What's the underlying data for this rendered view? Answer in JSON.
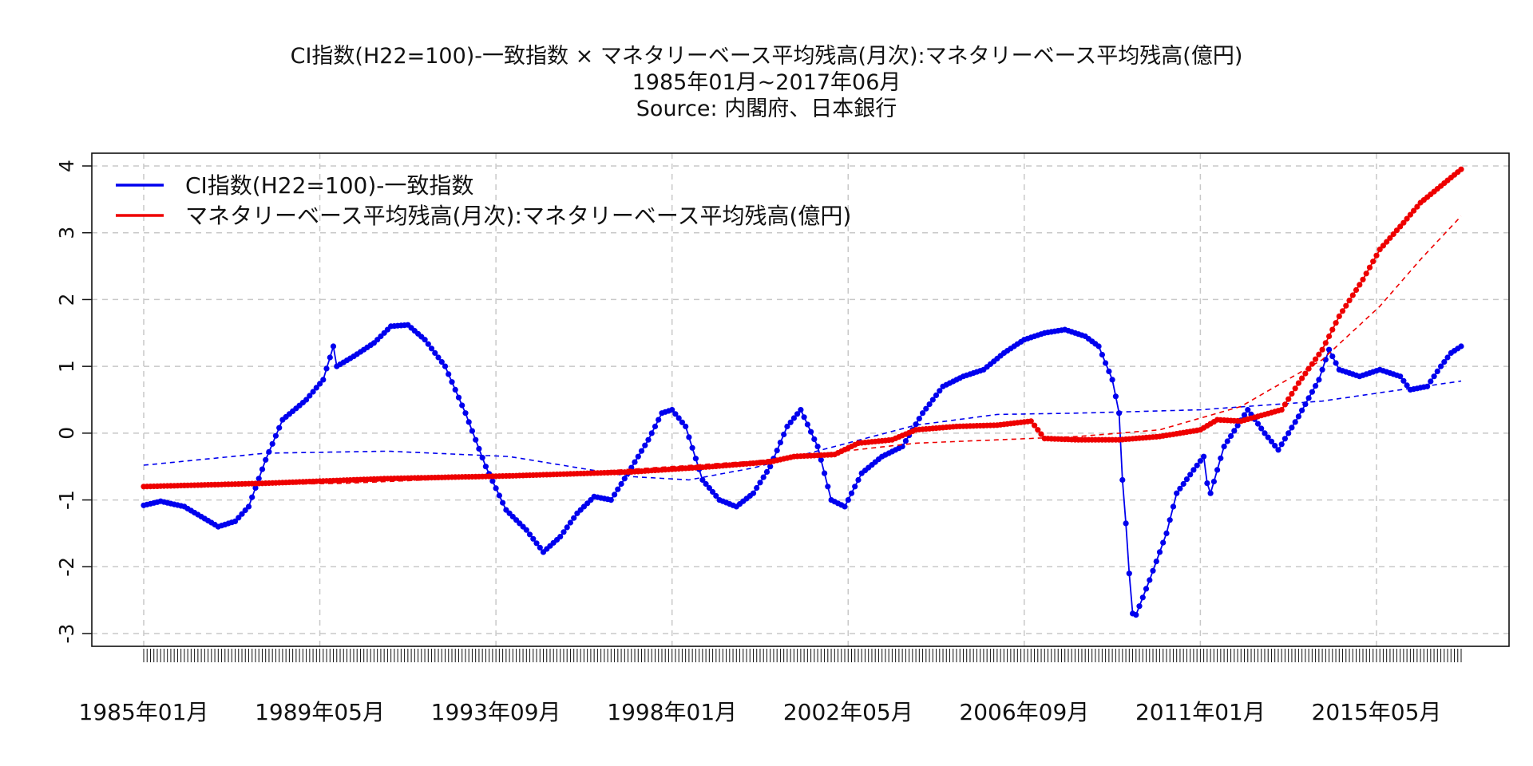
{
  "title": "CI指数(H22=100)-一致指数 × マネタリーベース平均残高(月次):マネタリーベース平均残高(億円)",
  "subtitle": "1985年01月~2017年06月",
  "source": "Source: 内閣府、日本銀行",
  "chart_data": {
    "type": "line",
    "x_start": "1985-01",
    "x_end": "2017-06",
    "x_ticks": [
      "1985年01月",
      "1989年05月",
      "1993年09月",
      "1998年01月",
      "2002年05月",
      "2006年09月",
      "2011年01月",
      "2015年05月"
    ],
    "y_ticks": [
      "-3",
      "-2",
      "-1",
      "0",
      "1",
      "2",
      "3",
      "4"
    ],
    "ylim": [
      -3,
      4
    ],
    "grid": true,
    "legend_position": "top-left",
    "series": [
      {
        "name": "CI指数(H22=100)-一致指数",
        "color": "#0000ee",
        "anchors": [
          [
            "1985-01",
            -1.08
          ],
          [
            "1985-06",
            -1.02
          ],
          [
            "1986-01",
            -1.1
          ],
          [
            "1986-06",
            -1.25
          ],
          [
            "1986-11",
            -1.4
          ],
          [
            "1987-04",
            -1.32
          ],
          [
            "1987-08",
            -1.1
          ],
          [
            "1988-01",
            -0.4
          ],
          [
            "1988-06",
            0.2
          ],
          [
            "1989-01",
            0.5
          ],
          [
            "1989-06",
            0.8
          ],
          [
            "1989-09",
            1.3
          ],
          [
            "1989-10",
            1.0
          ],
          [
            "1990-03",
            1.15
          ],
          [
            "1990-09",
            1.35
          ],
          [
            "1991-02",
            1.6
          ],
          [
            "1991-07",
            1.62
          ],
          [
            "1991-12",
            1.4
          ],
          [
            "1992-06",
            1.0
          ],
          [
            "1992-12",
            0.3
          ],
          [
            "1993-06",
            -0.5
          ],
          [
            "1993-12",
            -1.15
          ],
          [
            "1994-06",
            -1.45
          ],
          [
            "1994-11",
            -1.78
          ],
          [
            "1995-04",
            -1.55
          ],
          [
            "1995-09",
            -1.2
          ],
          [
            "1996-02",
            -0.95
          ],
          [
            "1996-07",
            -1.0
          ],
          [
            "1996-12",
            -0.6
          ],
          [
            "1997-06",
            -0.1
          ],
          [
            "1997-10",
            0.3
          ],
          [
            "1998-01",
            0.35
          ],
          [
            "1998-05",
            0.1
          ],
          [
            "1998-10",
            -0.7
          ],
          [
            "1999-03",
            -1.0
          ],
          [
            "1999-08",
            -1.1
          ],
          [
            "2000-01",
            -0.9
          ],
          [
            "2000-06",
            -0.5
          ],
          [
            "2000-11",
            0.1
          ],
          [
            "2001-03",
            0.35
          ],
          [
            "2001-08",
            -0.2
          ],
          [
            "2001-12",
            -1.0
          ],
          [
            "2002-04",
            -1.1
          ],
          [
            "2002-09",
            -0.6
          ],
          [
            "2003-03",
            -0.35
          ],
          [
            "2003-09",
            -0.2
          ],
          [
            "2004-03",
            0.3
          ],
          [
            "2004-09",
            0.7
          ],
          [
            "2005-03",
            0.85
          ],
          [
            "2005-09",
            0.95
          ],
          [
            "2006-03",
            1.2
          ],
          [
            "2006-09",
            1.4
          ],
          [
            "2007-03",
            1.5
          ],
          [
            "2007-09",
            1.55
          ],
          [
            "2008-03",
            1.45
          ],
          [
            "2008-07",
            1.3
          ],
          [
            "2008-11",
            0.8
          ],
          [
            "2009-01",
            0.3
          ],
          [
            "2009-02",
            -0.7
          ],
          [
            "2009-03",
            -1.35
          ],
          [
            "2009-04",
            -2.1
          ],
          [
            "2009-05",
            -2.7
          ],
          [
            "2009-06",
            -2.72
          ],
          [
            "2009-10",
            -2.2
          ],
          [
            "2010-03",
            -1.5
          ],
          [
            "2010-06",
            -0.9
          ],
          [
            "2010-11",
            -0.55
          ],
          [
            "2011-02",
            -0.35
          ],
          [
            "2011-03",
            -0.75
          ],
          [
            "2011-04",
            -0.9
          ],
          [
            "2011-08",
            -0.2
          ],
          [
            "2012-03",
            0.35
          ],
          [
            "2012-08",
            0.0
          ],
          [
            "2012-12",
            -0.25
          ],
          [
            "2013-06",
            0.25
          ],
          [
            "2013-12",
            0.8
          ],
          [
            "2014-03",
            1.25
          ],
          [
            "2014-06",
            0.95
          ],
          [
            "2014-12",
            0.85
          ],
          [
            "2015-06",
            0.95
          ],
          [
            "2015-12",
            0.85
          ],
          [
            "2016-03",
            0.65
          ],
          [
            "2016-08",
            0.7
          ],
          [
            "2016-12",
            1.0
          ],
          [
            "2017-03",
            1.2
          ],
          [
            "2017-06",
            1.3
          ]
        ],
        "trend_anchors": [
          [
            "1985-01",
            -0.48
          ],
          [
            "1988-01",
            -0.3
          ],
          [
            "1991-01",
            -0.27
          ],
          [
            "1994-01",
            -0.35
          ],
          [
            "1997-01",
            -0.65
          ],
          [
            "1998-06",
            -0.7
          ],
          [
            "2000-01",
            -0.52
          ],
          [
            "2002-01",
            -0.2
          ],
          [
            "2004-01",
            0.12
          ],
          [
            "2006-01",
            0.28
          ],
          [
            "2008-01",
            0.3
          ],
          [
            "2011-01",
            0.35
          ],
          [
            "2014-01",
            0.48
          ],
          [
            "2017-06",
            0.78
          ]
        ]
      },
      {
        "name": "マネタリーベース平均残高(月次):マネタリーベース平均残高(億円)",
        "color": "#ee0000",
        "anchors": [
          [
            "1985-01",
            -0.8
          ],
          [
            "1988-01",
            -0.75
          ],
          [
            "1991-01",
            -0.68
          ],
          [
            "1994-01",
            -0.64
          ],
          [
            "1997-01",
            -0.58
          ],
          [
            "1999-01",
            -0.5
          ],
          [
            "2000-06",
            -0.43
          ],
          [
            "2001-01",
            -0.35
          ],
          [
            "2002-01",
            -0.32
          ],
          [
            "2002-08",
            -0.15
          ],
          [
            "2003-06",
            -0.1
          ],
          [
            "2004-01",
            0.05
          ],
          [
            "2005-01",
            0.1
          ],
          [
            "2006-01",
            0.12
          ],
          [
            "2006-11",
            0.18
          ],
          [
            "2007-03",
            -0.08
          ],
          [
            "2008-01",
            -0.1
          ],
          [
            "2009-01",
            -0.1
          ],
          [
            "2010-01",
            -0.05
          ],
          [
            "2011-01",
            0.05
          ],
          [
            "2011-06",
            0.2
          ],
          [
            "2012-01",
            0.18
          ],
          [
            "2013-01",
            0.35
          ],
          [
            "2013-06",
            0.75
          ],
          [
            "2014-01",
            1.25
          ],
          [
            "2014-06",
            1.75
          ],
          [
            "2015-01",
            2.3
          ],
          [
            "2015-06",
            2.75
          ],
          [
            "2016-01",
            3.15
          ],
          [
            "2016-06",
            3.45
          ],
          [
            "2016-12",
            3.7
          ],
          [
            "2017-06",
            3.95
          ]
        ],
        "trend_anchors": [
          [
            "1985-01",
            -0.8
          ],
          [
            "1990-01",
            -0.75
          ],
          [
            "1995-01",
            -0.62
          ],
          [
            "2000-01",
            -0.42
          ],
          [
            "2004-01",
            -0.15
          ],
          [
            "2008-01",
            -0.05
          ],
          [
            "2010-01",
            0.05
          ],
          [
            "2012-01",
            0.4
          ],
          [
            "2014-01",
            1.1
          ],
          [
            "2015-06",
            1.9
          ],
          [
            "2016-06",
            2.6
          ],
          [
            "2017-06",
            3.25
          ]
        ]
      }
    ]
  }
}
